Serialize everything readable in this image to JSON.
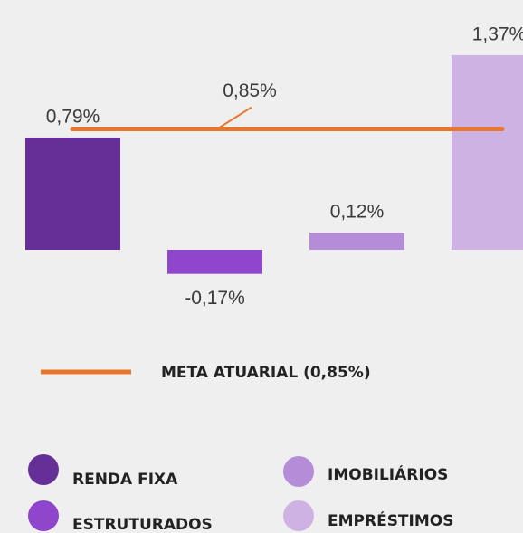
{
  "chart_data": {
    "type": "bar",
    "categories": [
      "RENDA FIXA",
      "ESTRUTURADOS",
      "IMOBILIÁRIOS",
      "EMPRÉSTIMOS"
    ],
    "values": [
      0.79,
      -0.17,
      0.12,
      1.37
    ],
    "value_labels": [
      "0,79%",
      "-0,17%",
      "0,12%",
      "1,37%"
    ],
    "colors": [
      "#652f97",
      "#8f45cc",
      "#b58cd8",
      "#cdb2e3"
    ],
    "ylim": [
      -0.5,
      1.75
    ],
    "reference_line": {
      "name": "META ATUARIAL (0,85%)",
      "value": 0.85,
      "label": "0,85%",
      "color": "#e8772e"
    }
  }
}
